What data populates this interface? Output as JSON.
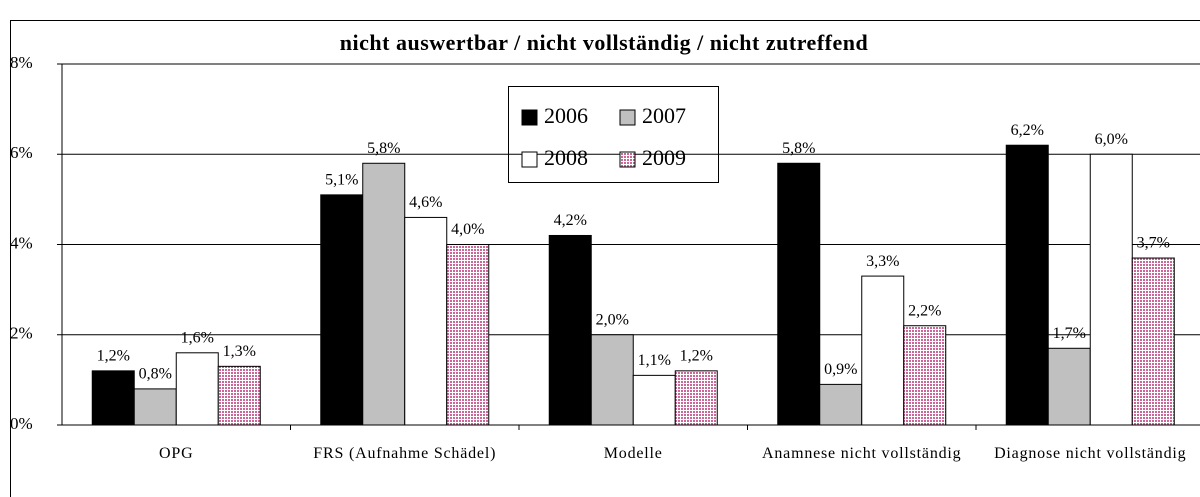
{
  "chart_data": {
    "type": "bar",
    "title": "nicht auswertbar / nicht vollständig / nicht zutreffend",
    "categories": [
      "OPG",
      "FRS (Aufnahme Schädel)",
      "Modelle",
      "Anamnese nicht vollständig",
      "Diagnose nicht vollständig"
    ],
    "series": [
      {
        "name": "2006",
        "color": "#000000",
        "values": [
          1.2,
          5.1,
          4.2,
          5.8,
          6.2
        ],
        "value_labels": [
          "1,2%",
          "5,1%",
          "4,2%",
          "5,8%",
          "6,2%"
        ]
      },
      {
        "name": "2007",
        "color": "#c0c0c0",
        "values": [
          0.8,
          5.8,
          2.0,
          0.9,
          1.7
        ],
        "value_labels": [
          "0,8%",
          "5,8%",
          "2,0%",
          "0,9%",
          "1,7%"
        ]
      },
      {
        "name": "2008",
        "color": "#ffffff",
        "values": [
          1.6,
          4.6,
          1.1,
          3.3,
          6.0
        ],
        "value_labels": [
          "1,6%",
          "4,6%",
          "1,1%",
          "3,3%",
          "6,0%"
        ]
      },
      {
        "name": "2009",
        "color": "#cc6699",
        "values": [
          1.3,
          4.0,
          1.2,
          2.2,
          3.7
        ],
        "value_labels": [
          "1,3%",
          "4,0%",
          "1,2%",
          "2,2%",
          "3,7%"
        ]
      }
    ],
    "ylim": [
      0,
      8
    ],
    "yticks": [
      {
        "value": 0,
        "label": "0%"
      },
      {
        "value": 2,
        "label": "2%"
      },
      {
        "value": 4,
        "label": "4%"
      },
      {
        "value": 6,
        "label": "6%"
      },
      {
        "value": 8,
        "label": "8%"
      }
    ],
    "grid": true
  }
}
